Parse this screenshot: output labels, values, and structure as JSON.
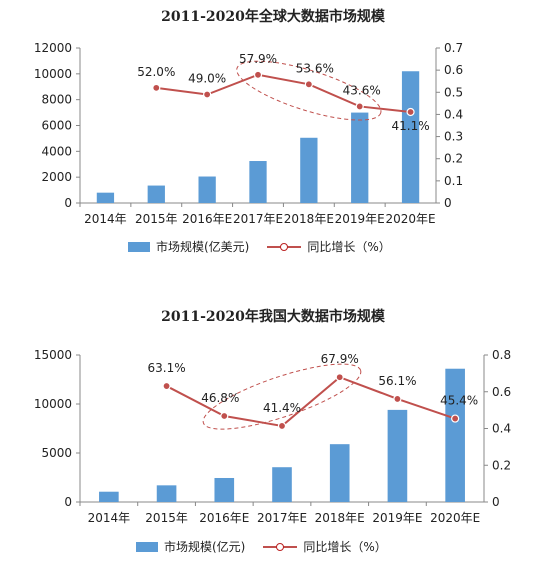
{
  "colors": {
    "bar": "#5b9bd5",
    "line": "#c0504d",
    "marker_fill": "#ffffff",
    "highlight": "#c0504d",
    "axis": "#888888"
  },
  "chart_data": [
    {
      "type": "bar+line",
      "title": "2011-2020年全球大数据市场规模",
      "categories": [
        "2014年",
        "2015年",
        "2016年E",
        "2017年E",
        "2018年E",
        "2019年E",
        "2020年E"
      ],
      "y_left": {
        "ylim": [
          0,
          12000
        ],
        "ticks": [
          "0",
          "2000",
          "4000",
          "6000",
          "8000",
          "10000",
          "12000"
        ]
      },
      "y_right": {
        "ylim": [
          0,
          0.7
        ],
        "ticks": [
          "0",
          "0.1",
          "0.2",
          "0.3",
          "0.4",
          "0.5",
          "0.6",
          "0.7"
        ]
      },
      "series": [
        {
          "name": "市场规模(亿美元)",
          "kind": "bar",
          "axis": "left",
          "values": [
            800,
            1350,
            2050,
            3250,
            5050,
            7000,
            10200
          ]
        },
        {
          "name": "同比增长（%）",
          "kind": "line",
          "axis": "right",
          "values": [
            null,
            0.52,
            0.49,
            0.579,
            0.536,
            0.436,
            0.411
          ],
          "labels": [
            "",
            "52.0%",
            "49.0%",
            "57.9%",
            "53.6%",
            "43.6%",
            "41.1%"
          ]
        }
      ],
      "highlight_categories": [
        "2017年E",
        "2019年E"
      ],
      "legend": "bottom"
    },
    {
      "type": "bar+line",
      "title": "2011-2020年我国大数据市场规模",
      "categories": [
        "2014年",
        "2015年",
        "2016年E",
        "2017年E",
        "2018年E",
        "2019年E",
        "2020年E"
      ],
      "y_left": {
        "ylim": [
          0,
          15000
        ],
        "ticks": [
          "0",
          "5000",
          "10000",
          "15000"
        ]
      },
      "y_right": {
        "ylim": [
          0,
          0.8
        ],
        "ticks": [
          "0",
          "0.2",
          "0.4",
          "0.6",
          "0.8"
        ]
      },
      "series": [
        {
          "name": "市场规模(亿元)",
          "kind": "bar",
          "axis": "left",
          "values": [
            1050,
            1700,
            2450,
            3550,
            5900,
            9400,
            13600
          ]
        },
        {
          "name": "同比增长（%）",
          "kind": "line",
          "axis": "right",
          "values": [
            null,
            0.631,
            0.468,
            0.414,
            0.679,
            0.561,
            0.454
          ],
          "labels": [
            "",
            "63.1%",
            "46.8%",
            "41.4%",
            "67.9%",
            "56.1%",
            "45.4%"
          ]
        }
      ],
      "highlight_categories": [
        "2016年E",
        "2018年E"
      ],
      "legend": "bottom"
    }
  ]
}
